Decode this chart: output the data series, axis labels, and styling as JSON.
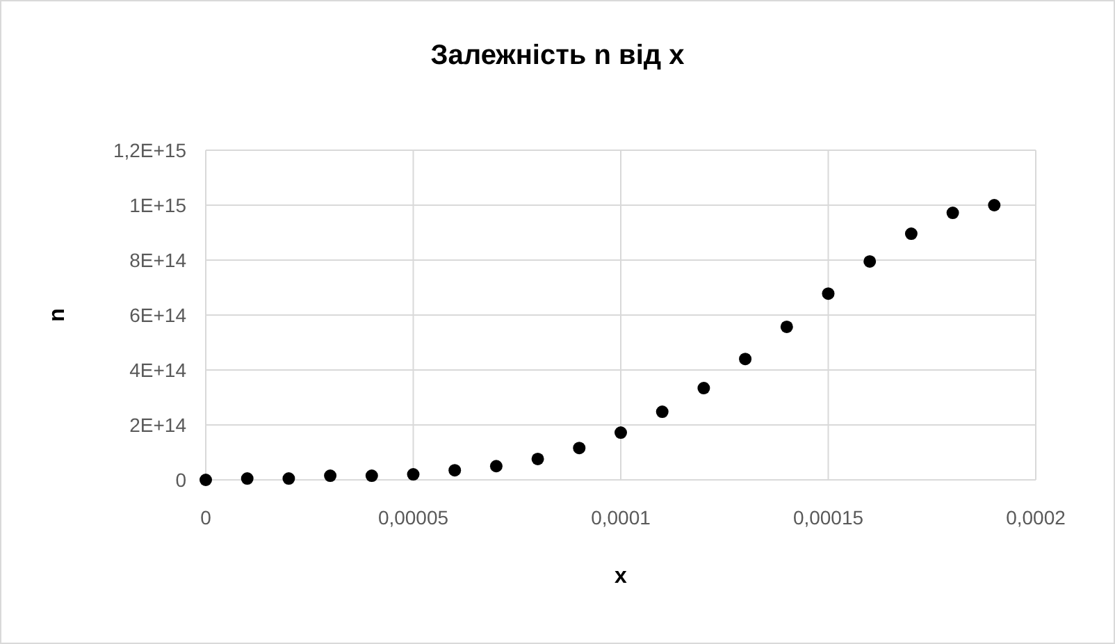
{
  "chart_data": {
    "type": "scatter",
    "title": "Залежність n від x",
    "xlabel": "x",
    "ylabel": "n",
    "x": [
      0,
      1e-05,
      2e-05,
      3e-05,
      4e-05,
      5e-05,
      6e-05,
      7e-05,
      8e-05,
      9e-05,
      0.0001,
      0.00011,
      0.00012,
      0.00013,
      0.00014,
      0.00015,
      0.00016,
      0.00017,
      0.00018,
      0.00019
    ],
    "series": [
      {
        "color": "#000000",
        "values": [
          0,
          5000000000000.0,
          5000000000000.0,
          15000000000000.0,
          15000000000000.0,
          20000000000000.0,
          35000000000000.0,
          50000000000000.0,
          76000000000000.0,
          116000000000000.0,
          172000000000000.0,
          248000000000000.0,
          334000000000000.0,
          440000000000000.0,
          557000000000000.0,
          678000000000000.0,
          795000000000000.0,
          896000000000000.0,
          972000000000000.0,
          1000000000000000.0
        ]
      }
    ],
    "xlim": [
      0,
      0.0002
    ],
    "xticks": [
      0,
      {
        "value": 5e-05,
        "label": "0,00005"
      },
      {
        "value": 0.0001,
        "label": "0,0001"
      },
      {
        "value": 0.00015,
        "label": "0,00015"
      },
      {
        "value": 0.0002,
        "label": "0,0002"
      }
    ],
    "ylim": [
      0,
      1200000000000000.0
    ],
    "yticks": [
      0,
      {
        "value": 200000000000000.0,
        "label": "2E+14"
      },
      {
        "value": 400000000000000.0,
        "label": "4E+14"
      },
      {
        "value": 600000000000000.0,
        "label": "6E+14"
      },
      {
        "value": 800000000000000.0,
        "label": "8E+14"
      },
      {
        "value": 1000000000000000.0,
        "label": "1E+15"
      },
      {
        "value": 1200000000000000.0,
        "label": "1,2E+15"
      }
    ],
    "grid": true,
    "marker": "circle"
  }
}
